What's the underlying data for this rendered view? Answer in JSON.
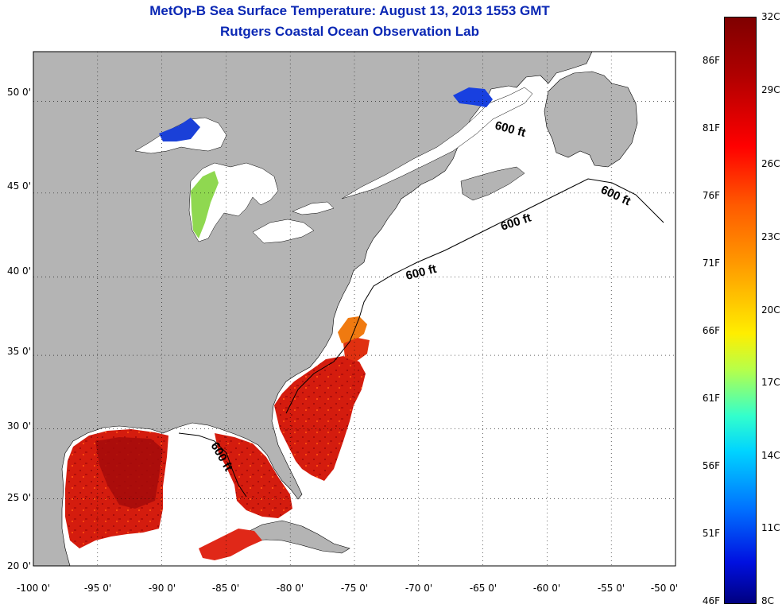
{
  "title_line1": "MetOp-B Sea Surface Temperature:  August 13, 2013 1553 GMT",
  "title_line2": "Rutgers Coastal Ocean Observation Lab",
  "x_ticks": [
    "-100 0'",
    "-95 0'",
    "-90 0'",
    "-85 0'",
    "-80 0'",
    "-75 0'",
    "-70 0'",
    "-65 0'",
    "-60 0'",
    "-55 0'",
    "-50 0'"
  ],
  "y_ticks": [
    "50 0'",
    "45 0'",
    "40 0'",
    "35 0'",
    "30 0'",
    "25 0'",
    "20 0'"
  ],
  "isobath_labels": [
    "600 ft",
    "600 ft",
    "600 ft",
    "600 ft",
    "600 ft"
  ],
  "colorbar": {
    "fahrenheit": [
      "86F",
      "81F",
      "76F",
      "71F",
      "66F",
      "61F",
      "56F",
      "51F",
      "46F"
    ],
    "celsius": [
      "32C",
      "29C",
      "26C",
      "23C",
      "20C",
      "17C",
      "14C",
      "11C",
      "8C"
    ]
  },
  "colors": {
    "title": "#0a27b4",
    "land": "#b4b4b4",
    "no_data": "#ffffff",
    "warm_sst": "#d81d10",
    "hot_sst": "#a80a0a",
    "mild_sst": "#ff8a00",
    "cold_lake": "#1040e0"
  },
  "map_extent": {
    "lon": [
      -100,
      -50
    ],
    "lat": [
      20,
      52.5
    ]
  }
}
